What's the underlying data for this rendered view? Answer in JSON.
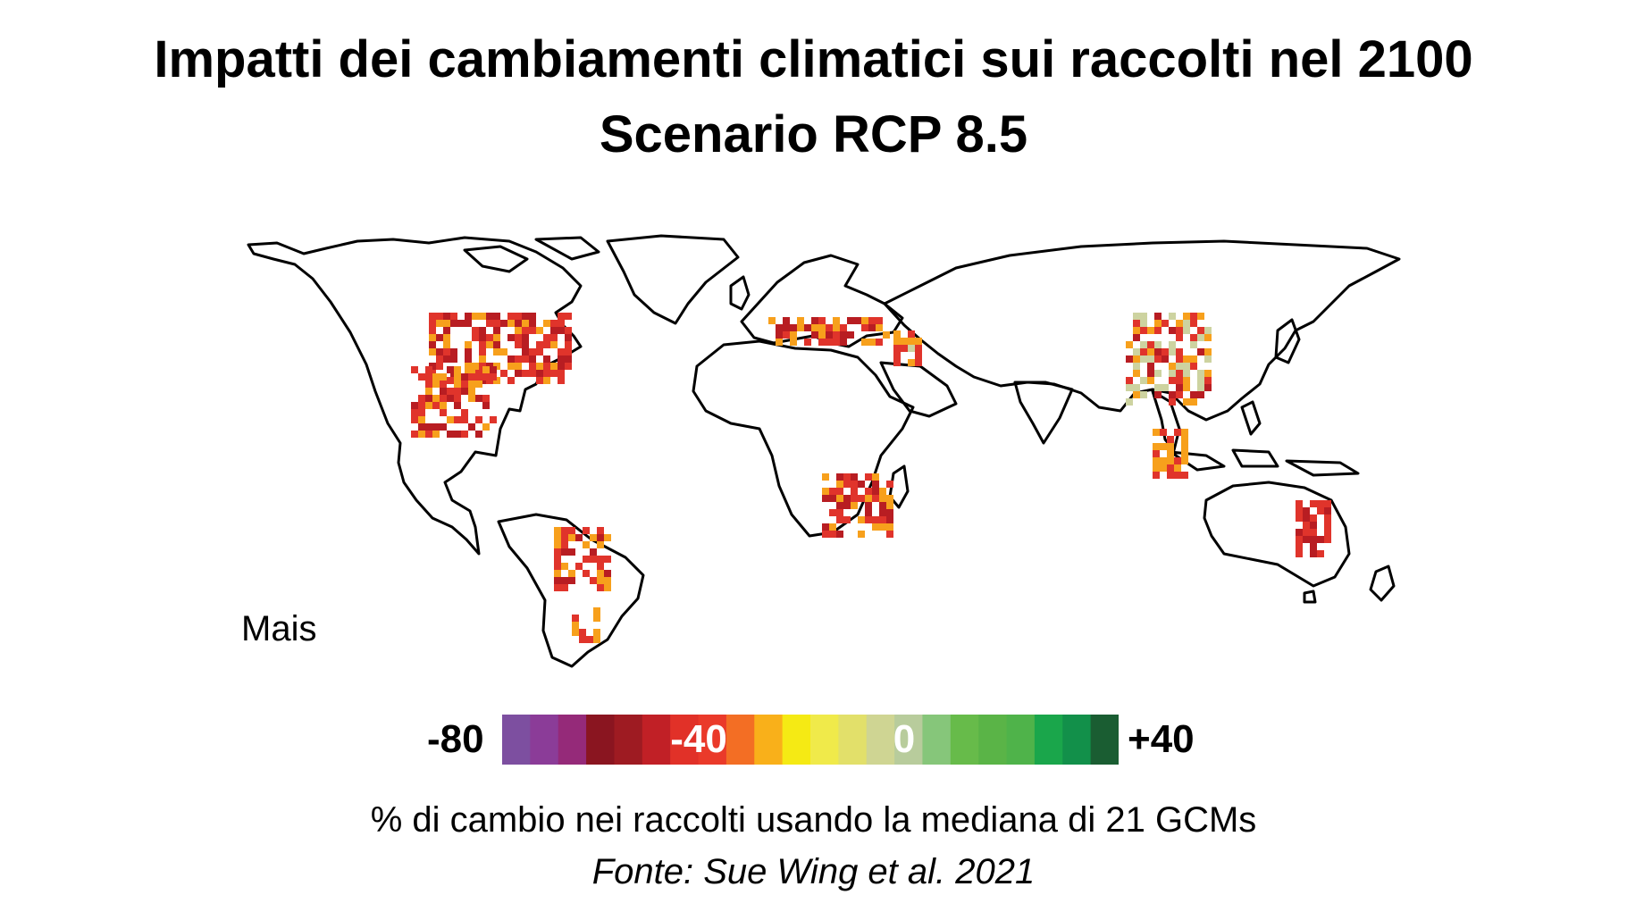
{
  "title": "Impatti dei cambiamenti climatici sui raccolti nel 2100",
  "subtitle": "Scenario RCP 8.5",
  "crop_label": "Mais",
  "legend": {
    "min_label": "-80",
    "mid_neg_label": "-40",
    "zero_label": "0",
    "max_label": "+40",
    "range": [
      -80,
      40
    ],
    "colors": [
      "#7d4fa0",
      "#8b3c98",
      "#952a79",
      "#8a1520",
      "#9e1b22",
      "#c12026",
      "#e13128",
      "#ea3a2a",
      "#f36e24",
      "#f9b01a",
      "#f5ea14",
      "#f0ea4a",
      "#e2e06a",
      "#cfd593",
      "#b8cc9c",
      "#86c67a",
      "#67bb4a",
      "#5ab447",
      "#4fb34a",
      "#1aa64b",
      "#12904a",
      "#1a5d32"
    ]
  },
  "caption": "% di cambio nei raccolti usando la mediana di 21 GCMs",
  "source": "Fonte: Sue Wing et al. 2021",
  "colors": {
    "loss": "#e0342b",
    "strong_loss": "#b81d22",
    "moderate": "#f7a01c",
    "neutral": "#cdd3a0"
  }
}
